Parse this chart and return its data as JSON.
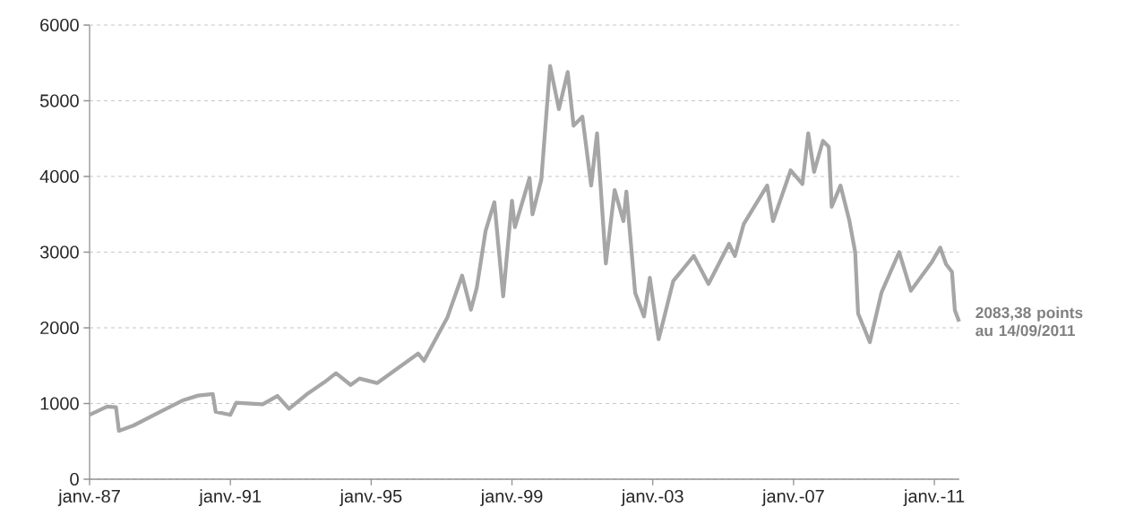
{
  "chart_data": {
    "type": "line",
    "color": "#a6a6a6",
    "marker": "none",
    "grid": "y",
    "xlim": [
      "1987-01",
      "2011-09-14"
    ],
    "ylim": [
      0,
      6000
    ],
    "xticks": [
      {
        "value": "1987-01",
        "label": "janv.-87"
      },
      {
        "value": "1991-01",
        "label": "janv.-91"
      },
      {
        "value": "1995-01",
        "label": "janv.-95"
      },
      {
        "value": "1999-01",
        "label": "janv.-99"
      },
      {
        "value": "2003-01",
        "label": "janv.-03"
      },
      {
        "value": "2007-01",
        "label": "janv.-07"
      },
      {
        "value": "2011-01",
        "label": "janv.-11"
      }
    ],
    "yticks": [
      0,
      1000,
      2000,
      3000,
      4000,
      5000,
      6000
    ],
    "x": [
      "1987-01",
      "1987-07",
      "1987-10",
      "1987-11",
      "1988-04",
      "1989-01",
      "1989-09",
      "1990-02",
      "1990-07",
      "1990-08",
      "1991-01",
      "1991-03",
      "1991-12",
      "1992-05",
      "1992-09",
      "1993-03",
      "1993-09",
      "1994-01",
      "1994-06",
      "1994-09",
      "1995-03",
      "1996-05",
      "1996-07",
      "1997-03",
      "1997-08",
      "1997-11",
      "1998-01",
      "1998-04",
      "1998-07",
      "1998-10",
      "1999-01",
      "1999-02",
      "1999-07",
      "1999-08",
      "1999-11",
      "2000-02",
      "2000-05",
      "2000-08",
      "2000-10",
      "2001-01",
      "2001-04",
      "2001-06",
      "2001-09",
      "2001-12",
      "2002-03",
      "2002-04",
      "2002-07",
      "2002-10",
      "2002-12",
      "2003-03",
      "2003-08",
      "2004-03",
      "2004-08",
      "2005-03",
      "2005-05",
      "2005-08",
      "2006-04",
      "2006-06",
      "2006-12",
      "2007-04",
      "2007-06",
      "2007-08",
      "2007-11",
      "2008-01",
      "2008-02",
      "2008-05",
      "2008-08",
      "2008-10",
      "2008-11",
      "2009-03",
      "2009-07",
      "2010-01",
      "2010-05",
      "2010-12",
      "2011-03",
      "2011-05",
      "2011-07",
      "2011-08",
      "2011-09-14"
    ],
    "values": [
      850,
      960,
      950,
      640,
      710,
      890,
      1045,
      1105,
      1125,
      890,
      850,
      1010,
      990,
      1100,
      930,
      1120,
      1280,
      1400,
      1245,
      1330,
      1270,
      1660,
      1565,
      2140,
      2690,
      2240,
      2530,
      3280,
      3660,
      2415,
      3680,
      3330,
      3980,
      3500,
      3960,
      5460,
      4890,
      5380,
      4670,
      4790,
      3880,
      4570,
      2850,
      3820,
      3410,
      3800,
      2460,
      2150,
      2660,
      1850,
      2620,
      2950,
      2580,
      3110,
      2950,
      3370,
      3880,
      3410,
      4080,
      3900,
      4570,
      4060,
      4470,
      4390,
      3600,
      3880,
      3420,
      3000,
      2190,
      1810,
      2470,
      3000,
      2490,
      2860,
      3060,
      2840,
      2740,
      2230,
      2083.38
    ],
    "annotations": [
      {
        "text": "2083,38 points au 14/09/2011",
        "x": "2011-09-14",
        "y": 2083.38
      }
    ]
  }
}
